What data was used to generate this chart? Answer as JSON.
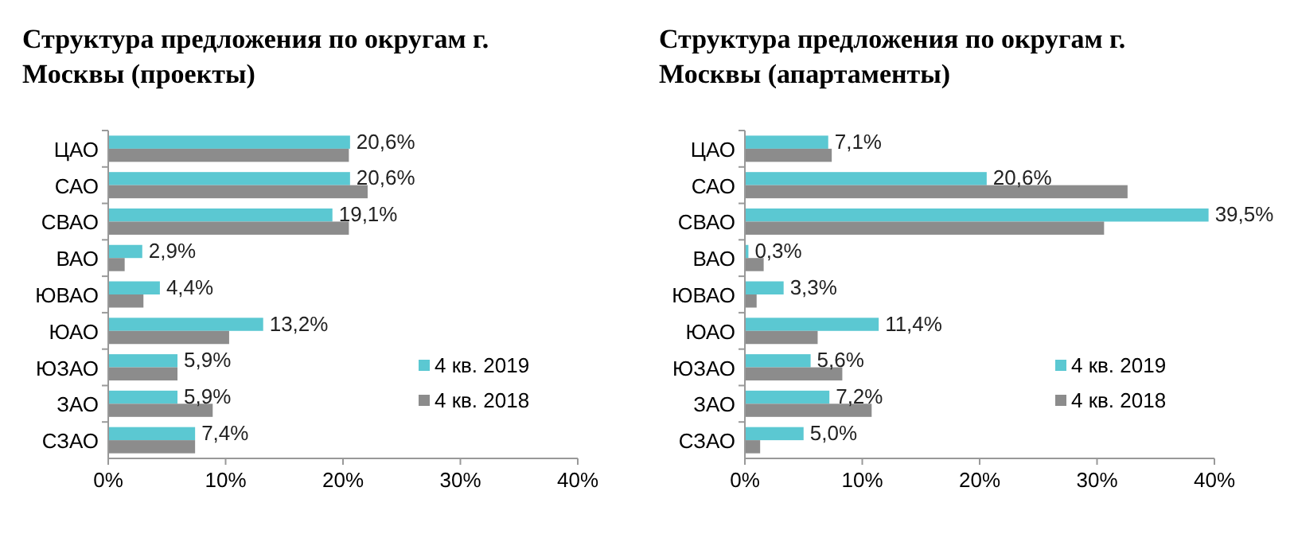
{
  "chart_data": [
    {
      "type": "bar",
      "orientation": "horizontal",
      "title": "Структура предложения по округам г. Москвы (проекты)",
      "categories": [
        "ЦАО",
        "САО",
        "СВАО",
        "ВАО",
        "ЮВАО",
        "ЮАО",
        "ЮЗАО",
        "ЗАО",
        "СЗАО"
      ],
      "series": [
        {
          "name": "4 кв. 2019",
          "color": "#5bc8d2",
          "values": [
            20.6,
            20.6,
            19.1,
            2.9,
            4.4,
            13.2,
            5.9,
            5.9,
            7.4
          ],
          "value_labels": [
            "20,6%",
            "20,6%",
            "19,1%",
            "2,9%",
            "4,4%",
            "13,2%",
            "5,9%",
            "5,9%",
            "7,4%"
          ]
        },
        {
          "name": "4 кв. 2018",
          "color": "#8c8c8c",
          "values": [
            20.5,
            22.1,
            20.5,
            1.4,
            3.0,
            10.3,
            5.9,
            8.9,
            7.4
          ]
        }
      ],
      "xlim": [
        0,
        40
      ],
      "xticks": [
        {
          "value": 0,
          "label": "0%"
        },
        {
          "value": 10,
          "label": "10%"
        },
        {
          "value": 20,
          "label": "20%"
        },
        {
          "value": 30,
          "label": "30%"
        },
        {
          "value": 40,
          "label": "40%"
        }
      ],
      "legend": "bottom right",
      "grid": false
    },
    {
      "type": "bar",
      "orientation": "horizontal",
      "title": "Структура предложения по округам г. Москвы (апартаменты)",
      "categories": [
        "ЦАО",
        "САО",
        "СВАО",
        "ВАО",
        "ЮВАО",
        "ЮАО",
        "ЮЗАО",
        "ЗАО",
        "СЗАО"
      ],
      "series": [
        {
          "name": "4 кв. 2019",
          "color": "#5bc8d2",
          "values": [
            7.1,
            20.6,
            39.5,
            0.3,
            3.3,
            11.4,
            5.6,
            7.2,
            5.0
          ],
          "value_labels": [
            "7,1%",
            "20,6%",
            "39,5%",
            "0,3%",
            "3,3%",
            "11,4%",
            "5,6%",
            "7,2%",
            "5,0%"
          ]
        },
        {
          "name": "4 кв. 2018",
          "color": "#8c8c8c",
          "values": [
            7.4,
            32.6,
            30.6,
            1.6,
            1.0,
            6.2,
            8.3,
            10.8,
            1.3
          ]
        }
      ],
      "xlim": [
        0,
        40
      ],
      "xticks": [
        {
          "value": 0,
          "label": "0%"
        },
        {
          "value": 10,
          "label": "10%"
        },
        {
          "value": 20,
          "label": "20%"
        },
        {
          "value": 30,
          "label": "30%"
        },
        {
          "value": 40,
          "label": "40%"
        }
      ],
      "legend": "bottom right",
      "grid": false
    }
  ]
}
